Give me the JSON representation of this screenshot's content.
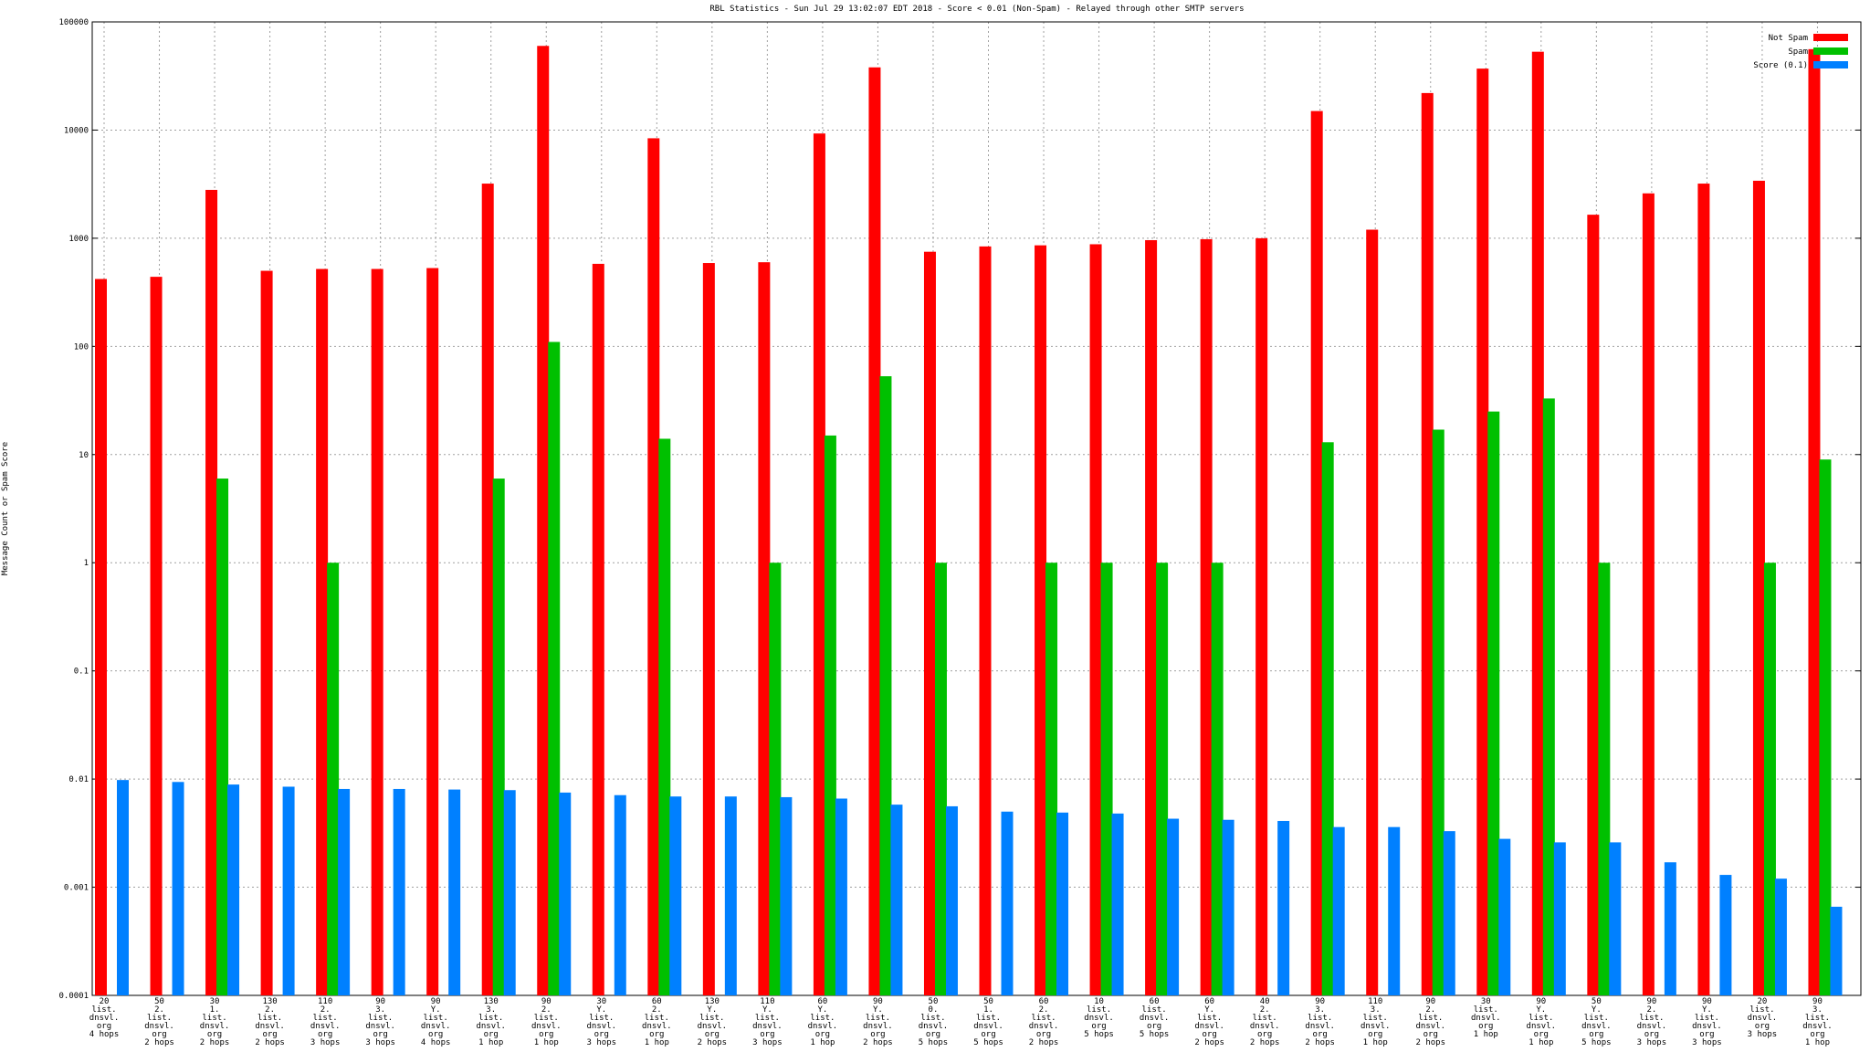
{
  "chart_data": {
    "type": "bar",
    "title": "RBL Statistics - Sun Jul 29 13:02:07 EDT 2018 - Score < 0.01 (Non-Spam) - Relayed through other SMTP servers",
    "y_label": "Message Count or Spam Score",
    "log_scale_y": true,
    "grid": true,
    "legend": "top-right",
    "ylim": [
      0.0001,
      100000
    ],
    "yticks": [
      0.0001,
      0.001,
      0.01,
      0.1,
      1,
      10,
      100,
      1000,
      10000,
      100000
    ],
    "categories": [
      [
        "20",
        "list.",
        "dnsvl.",
        "org",
        "4 hops"
      ],
      [
        "50",
        "2.",
        "list.",
        "dnsvl.",
        "org",
        "2 hops"
      ],
      [
        "30",
        "1.",
        "list.",
        "dnsvl.",
        "org",
        "2 hops"
      ],
      [
        "130",
        "2.",
        "list.",
        "dnsvl.",
        "org",
        "2 hops"
      ],
      [
        "110",
        "2.",
        "list.",
        "dnsvl.",
        "org",
        "3 hops"
      ],
      [
        "90",
        "3.",
        "list.",
        "dnsvl.",
        "org",
        "3 hops"
      ],
      [
        "90",
        "Y.",
        "list.",
        "dnsvl.",
        "org",
        "4 hops"
      ],
      [
        "130",
        "3.",
        "list.",
        "dnsvl.",
        "org",
        "1 hop"
      ],
      [
        "90",
        "2.",
        "list.",
        "dnsvl.",
        "org",
        "1 hop"
      ],
      [
        "30",
        "Y.",
        "list.",
        "dnsvl.",
        "org",
        "3 hops"
      ],
      [
        "60",
        "2.",
        "list.",
        "dnsvl.",
        "org",
        "1 hop"
      ],
      [
        "130",
        "Y.",
        "list.",
        "dnsvl.",
        "org",
        "2 hops"
      ],
      [
        "110",
        "Y.",
        "list.",
        "dnsvl.",
        "org",
        "3 hops"
      ],
      [
        "60",
        "Y.",
        "list.",
        "dnsvl.",
        "org",
        "1 hop"
      ],
      [
        "90",
        "Y.",
        "list.",
        "dnsvl.",
        "org",
        "2 hops"
      ],
      [
        "50",
        "0.",
        "list.",
        "dnsvl.",
        "org",
        "5 hops"
      ],
      [
        "50",
        "1.",
        "list.",
        "dnsvl.",
        "org",
        "5 hops"
      ],
      [
        "60",
        "2.",
        "list.",
        "dnsvl.",
        "org",
        "2 hops"
      ],
      [
        "10",
        "list.",
        "dnsvl.",
        "org",
        "5 hops"
      ],
      [
        "60",
        "list.",
        "dnsvl.",
        "org",
        "5 hops"
      ],
      [
        "60",
        "Y.",
        "list.",
        "dnsvl.",
        "org",
        "2 hops"
      ],
      [
        "40",
        "2.",
        "list.",
        "dnsvl.",
        "org",
        "2 hops"
      ],
      [
        "90",
        "3.",
        "list.",
        "dnsvl.",
        "org",
        "2 hops"
      ],
      [
        "110",
        "3.",
        "list.",
        "dnsvl.",
        "org",
        "1 hop"
      ],
      [
        "90",
        "2.",
        "list.",
        "dnsvl.",
        "org",
        "2 hops"
      ],
      [
        "30",
        "list.",
        "dnsvl.",
        "org",
        "1 hop"
      ],
      [
        "90",
        "Y.",
        "list.",
        "dnsvl.",
        "org",
        "1 hop"
      ],
      [
        "50",
        "Y.",
        "list.",
        "dnsvl.",
        "org",
        "5 hops"
      ],
      [
        "90",
        "2.",
        "list.",
        "dnsvl.",
        "org",
        "3 hops"
      ],
      [
        "90",
        "Y.",
        "list.",
        "dnsvl.",
        "org",
        "3 hops"
      ],
      [
        "20",
        "list.",
        "dnsvl.",
        "org",
        "3 hops"
      ],
      [
        "90",
        "3.",
        "list.",
        "dnsvl.",
        "org",
        "1 hop"
      ]
    ],
    "series": [
      {
        "name": "Not Spam",
        "color": "#ff0000",
        "values": [
          420,
          440,
          2800,
          500,
          520,
          520,
          530,
          3200,
          60000,
          580,
          8400,
          590,
          600,
          9300,
          38000,
          750,
          840,
          860,
          880,
          960,
          980,
          1000,
          15000,
          1200,
          22000,
          37000,
          53000,
          1650,
          2600,
          3200,
          3400,
          56000
        ]
      },
      {
        "name": "Spam",
        "color": "#00c000",
        "values": [
          null,
          null,
          6,
          null,
          1,
          null,
          null,
          6,
          110,
          null,
          14,
          null,
          1,
          15,
          53,
          1,
          null,
          1,
          1,
          1,
          1,
          null,
          13,
          null,
          17,
          25,
          33,
          1,
          null,
          null,
          1,
          9
        ]
      },
      {
        "name": "Score (0.1)",
        "color": "#0080ff",
        "values": [
          0.0098,
          0.0094,
          0.0089,
          0.0085,
          0.0081,
          0.0081,
          0.008,
          0.0079,
          0.0075,
          0.0071,
          0.0069,
          0.0069,
          0.0068,
          0.0066,
          0.0058,
          0.0056,
          0.005,
          0.0049,
          0.0048,
          0.0043,
          0.0042,
          0.0041,
          0.0036,
          0.0036,
          0.0033,
          0.0028,
          0.0026,
          0.0026,
          0.0017,
          0.0013,
          0.0012,
          0.00066
        ]
      }
    ]
  }
}
